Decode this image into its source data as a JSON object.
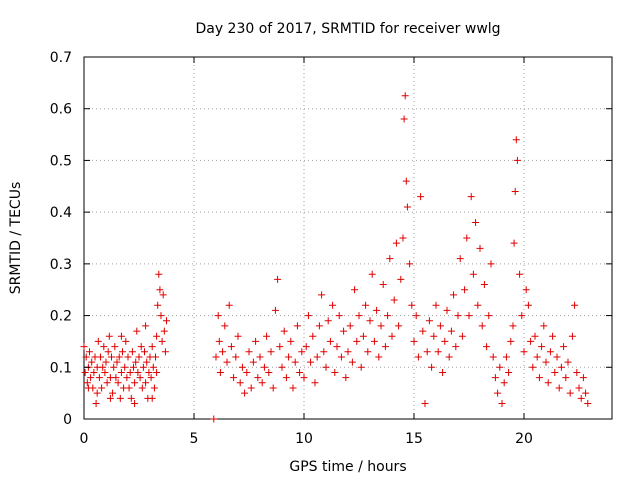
{
  "chart_data": {
    "type": "scatter",
    "title": "Day 230 of 2017, SRMTID for receiver wwlg",
    "xlabel": "GPS time / hours",
    "ylabel": "SRMTID / TECUs",
    "xlim": [
      0,
      24
    ],
    "ylim": [
      0,
      0.7
    ],
    "xticks": [
      0,
      5,
      10,
      15,
      20
    ],
    "xtick_labels": [
      "0",
      "5",
      "10",
      "15",
      "20"
    ],
    "yticks": [
      0,
      0.1,
      0.2,
      0.3,
      0.4,
      0.5,
      0.6,
      0.7
    ],
    "ytick_labels": [
      "0",
      "0.1",
      "0.2",
      "0.3",
      "0.4",
      "0.5",
      "0.6",
      "0.7"
    ],
    "grid": true,
    "marker": "+",
    "color": "#e00000",
    "series": [
      {
        "name": "SRMTID",
        "points": [
          [
            0.0,
            0.14
          ],
          [
            0.05,
            0.09
          ],
          [
            0.1,
            0.12
          ],
          [
            0.15,
            0.07
          ],
          [
            0.2,
            0.1
          ],
          [
            0.25,
            0.13
          ],
          [
            0.3,
            0.08
          ],
          [
            0.35,
            0.11
          ],
          [
            0.4,
            0.06
          ],
          [
            0.45,
            0.09
          ],
          [
            0.5,
            0.12
          ],
          [
            0.55,
            0.03
          ],
          [
            0.6,
            0.1
          ],
          [
            0.65,
            0.15
          ],
          [
            0.7,
            0.08
          ],
          [
            0.75,
            0.12
          ],
          [
            0.8,
            0.06
          ],
          [
            0.85,
            0.1
          ],
          [
            0.9,
            0.14
          ],
          [
            0.95,
            0.09
          ],
          [
            1.0,
            0.11
          ],
          [
            1.05,
            0.07
          ],
          [
            1.1,
            0.13
          ],
          [
            1.15,
            0.16
          ],
          [
            1.2,
            0.08
          ],
          [
            1.25,
            0.12
          ],
          [
            1.3,
            0.05
          ],
          [
            1.35,
            0.1
          ],
          [
            1.4,
            0.14
          ],
          [
            1.45,
            0.08
          ],
          [
            1.5,
            0.11
          ],
          [
            1.55,
            0.07
          ],
          [
            1.6,
            0.12
          ],
          [
            1.65,
            0.04
          ],
          [
            1.7,
            0.09
          ],
          [
            1.75,
            0.13
          ],
          [
            1.8,
            0.06
          ],
          [
            1.85,
            0.1
          ],
          [
            1.9,
            0.15
          ],
          [
            1.95,
            0.08
          ],
          [
            2.0,
            0.12
          ],
          [
            2.05,
            0.06
          ],
          [
            2.1,
            0.09
          ],
          [
            2.15,
            0.04
          ],
          [
            2.2,
            0.13
          ],
          [
            2.25,
            0.1
          ],
          [
            2.3,
            0.07
          ],
          [
            2.35,
            0.11
          ],
          [
            2.4,
            0.17
          ],
          [
            2.45,
            0.09
          ],
          [
            2.5,
            0.12
          ],
          [
            2.55,
            0.08
          ],
          [
            2.6,
            0.14
          ],
          [
            2.65,
            0.06
          ],
          [
            2.7,
            0.1
          ],
          [
            2.75,
            0.13
          ],
          [
            2.8,
            0.07
          ],
          [
            2.85,
            0.11
          ],
          [
            2.9,
            0.04
          ],
          [
            2.95,
            0.09
          ],
          [
            3.0,
            0.12
          ],
          [
            3.05,
            0.08
          ],
          [
            3.1,
            0.14
          ],
          [
            3.15,
            0.1
          ],
          [
            3.2,
            0.06
          ],
          [
            3.25,
            0.12
          ],
          [
            3.3,
            0.09
          ],
          [
            3.35,
            0.22
          ],
          [
            3.4,
            0.28
          ],
          [
            3.45,
            0.25
          ],
          [
            3.5,
            0.2
          ],
          [
            3.55,
            0.15
          ],
          [
            3.6,
            0.24
          ],
          [
            3.65,
            0.17
          ],
          [
            3.7,
            0.13
          ],
          [
            3.75,
            0.19
          ],
          [
            0.2,
            0.06
          ],
          [
            0.6,
            0.05
          ],
          [
            1.2,
            0.04
          ],
          [
            1.7,
            0.16
          ],
          [
            2.3,
            0.03
          ],
          [
            2.8,
            0.18
          ],
          [
            3.1,
            0.04
          ],
          [
            3.3,
            0.16
          ],
          [
            5.9,
            0.0
          ],
          [
            6.0,
            0.12
          ],
          [
            6.1,
            0.2
          ],
          [
            6.15,
            0.15
          ],
          [
            6.2,
            0.09
          ],
          [
            6.3,
            0.13
          ],
          [
            6.4,
            0.18
          ],
          [
            6.5,
            0.11
          ],
          [
            6.6,
            0.22
          ],
          [
            6.7,
            0.14
          ],
          [
            6.8,
            0.08
          ],
          [
            6.9,
            0.12
          ],
          [
            7.0,
            0.16
          ],
          [
            7.1,
            0.07
          ],
          [
            7.2,
            0.1
          ],
          [
            7.3,
            0.05
          ],
          [
            7.4,
            0.09
          ],
          [
            7.5,
            0.13
          ],
          [
            7.6,
            0.06
          ],
          [
            7.7,
            0.11
          ],
          [
            7.8,
            0.15
          ],
          [
            7.9,
            0.08
          ],
          [
            8.0,
            0.12
          ],
          [
            8.1,
            0.07
          ],
          [
            8.2,
            0.1
          ],
          [
            8.3,
            0.16
          ],
          [
            8.4,
            0.09
          ],
          [
            8.5,
            0.13
          ],
          [
            8.6,
            0.06
          ],
          [
            8.7,
            0.21
          ],
          [
            8.8,
            0.27
          ],
          [
            8.9,
            0.14
          ],
          [
            9.0,
            0.1
          ],
          [
            9.1,
            0.17
          ],
          [
            9.2,
            0.08
          ],
          [
            9.3,
            0.12
          ],
          [
            9.4,
            0.15
          ],
          [
            9.5,
            0.06
          ],
          [
            9.6,
            0.11
          ],
          [
            9.7,
            0.18
          ],
          [
            9.8,
            0.09
          ],
          [
            9.9,
            0.13
          ],
          [
            10.0,
            0.08
          ],
          [
            10.1,
            0.14
          ],
          [
            10.2,
            0.2
          ],
          [
            10.3,
            0.11
          ],
          [
            10.4,
            0.16
          ],
          [
            10.5,
            0.07
          ],
          [
            10.6,
            0.12
          ],
          [
            10.7,
            0.18
          ],
          [
            10.8,
            0.24
          ],
          [
            10.9,
            0.13
          ],
          [
            11.0,
            0.1
          ],
          [
            11.1,
            0.19
          ],
          [
            11.2,
            0.15
          ],
          [
            11.3,
            0.22
          ],
          [
            11.4,
            0.09
          ],
          [
            11.5,
            0.14
          ],
          [
            11.6,
            0.2
          ],
          [
            11.7,
            0.12
          ],
          [
            11.8,
            0.17
          ],
          [
            11.9,
            0.08
          ],
          [
            12.0,
            0.13
          ],
          [
            12.1,
            0.18
          ],
          [
            12.2,
            0.11
          ],
          [
            12.3,
            0.25
          ],
          [
            12.4,
            0.15
          ],
          [
            12.5,
            0.2
          ],
          [
            12.6,
            0.1
          ],
          [
            12.7,
            0.16
          ],
          [
            12.8,
            0.22
          ],
          [
            12.9,
            0.13
          ],
          [
            13.0,
            0.19
          ],
          [
            13.1,
            0.28
          ],
          [
            13.2,
            0.15
          ],
          [
            13.3,
            0.21
          ],
          [
            13.4,
            0.12
          ],
          [
            13.5,
            0.18
          ],
          [
            13.6,
            0.26
          ],
          [
            13.7,
            0.14
          ],
          [
            13.8,
            0.2
          ],
          [
            13.9,
            0.31
          ],
          [
            14.0,
            0.16
          ],
          [
            14.1,
            0.23
          ],
          [
            14.2,
            0.34
          ],
          [
            14.3,
            0.18
          ],
          [
            14.4,
            0.27
          ],
          [
            14.5,
            0.35
          ],
          [
            14.55,
            0.58
          ],
          [
            14.6,
            0.625
          ],
          [
            14.65,
            0.46
          ],
          [
            14.7,
            0.41
          ],
          [
            14.8,
            0.3
          ],
          [
            14.9,
            0.22
          ],
          [
            15.0,
            0.15
          ],
          [
            15.1,
            0.2
          ],
          [
            15.2,
            0.12
          ],
          [
            15.3,
            0.43
          ],
          [
            15.4,
            0.17
          ],
          [
            15.5,
            0.03
          ],
          [
            15.6,
            0.13
          ],
          [
            15.7,
            0.19
          ],
          [
            15.8,
            0.1
          ],
          [
            15.9,
            0.16
          ],
          [
            16.0,
            0.22
          ],
          [
            16.1,
            0.13
          ],
          [
            16.2,
            0.18
          ],
          [
            16.3,
            0.09
          ],
          [
            16.4,
            0.15
          ],
          [
            16.5,
            0.21
          ],
          [
            16.6,
            0.12
          ],
          [
            16.7,
            0.17
          ],
          [
            16.8,
            0.24
          ],
          [
            16.9,
            0.14
          ],
          [
            17.0,
            0.2
          ],
          [
            17.1,
            0.31
          ],
          [
            17.2,
            0.16
          ],
          [
            17.3,
            0.25
          ],
          [
            17.4,
            0.35
          ],
          [
            17.5,
            0.2
          ],
          [
            17.6,
            0.43
          ],
          [
            17.7,
            0.28
          ],
          [
            17.8,
            0.38
          ],
          [
            17.9,
            0.22
          ],
          [
            18.0,
            0.33
          ],
          [
            18.1,
            0.18
          ],
          [
            18.2,
            0.26
          ],
          [
            18.3,
            0.14
          ],
          [
            18.4,
            0.2
          ],
          [
            18.5,
            0.3
          ],
          [
            18.6,
            0.12
          ],
          [
            18.7,
            0.08
          ],
          [
            18.8,
            0.05
          ],
          [
            18.9,
            0.1
          ],
          [
            19.0,
            0.03
          ],
          [
            19.1,
            0.07
          ],
          [
            19.2,
            0.12
          ],
          [
            19.3,
            0.09
          ],
          [
            19.4,
            0.15
          ],
          [
            19.5,
            0.18
          ],
          [
            19.55,
            0.34
          ],
          [
            19.6,
            0.44
          ],
          [
            19.65,
            0.54
          ],
          [
            19.7,
            0.5
          ],
          [
            19.8,
            0.28
          ],
          [
            19.9,
            0.2
          ],
          [
            20.0,
            0.13
          ],
          [
            20.1,
            0.25
          ],
          [
            20.2,
            0.22
          ],
          [
            20.3,
            0.15
          ],
          [
            20.4,
            0.1
          ],
          [
            20.5,
            0.16
          ],
          [
            20.6,
            0.12
          ],
          [
            20.7,
            0.08
          ],
          [
            20.8,
            0.14
          ],
          [
            20.9,
            0.18
          ],
          [
            21.0,
            0.11
          ],
          [
            21.1,
            0.07
          ],
          [
            21.2,
            0.13
          ],
          [
            21.3,
            0.16
          ],
          [
            21.4,
            0.09
          ],
          [
            21.5,
            0.12
          ],
          [
            21.6,
            0.06
          ],
          [
            21.7,
            0.1
          ],
          [
            21.8,
            0.14
          ],
          [
            21.9,
            0.08
          ],
          [
            22.0,
            0.11
          ],
          [
            22.1,
            0.05
          ],
          [
            22.2,
            0.16
          ],
          [
            22.3,
            0.22
          ],
          [
            22.4,
            0.09
          ],
          [
            22.5,
            0.06
          ],
          [
            22.6,
            0.04
          ],
          [
            22.7,
            0.08
          ],
          [
            22.8,
            0.05
          ],
          [
            22.9,
            0.03
          ]
        ]
      }
    ]
  }
}
